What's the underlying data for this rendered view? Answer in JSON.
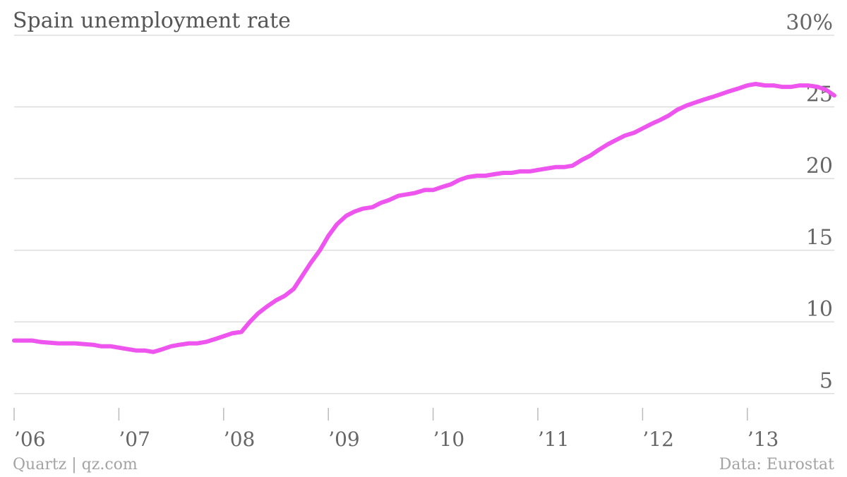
{
  "colors": {
    "line": "#ee55ee",
    "gridline": "#dddddd",
    "tick_mark": "#bbbbbb",
    "text": "#666666",
    "footer_text": "#a3a3a3"
  },
  "footer": {
    "source_left": "Quartz | qz.com",
    "source_right": "Data: Eurostat"
  },
  "chart_data": {
    "type": "line",
    "title": "Spain unemployment rate",
    "xlabel": "",
    "ylabel": "",
    "y_unit_suffix": "%",
    "ylim": [
      4.0,
      30
    ],
    "xlim": [
      2006.0,
      2013.83
    ],
    "y_ticks": [
      5,
      10,
      15,
      20,
      25,
      30
    ],
    "y_tick_labels": [
      "5",
      "10",
      "15",
      "20",
      "25",
      "30%"
    ],
    "x_ticks": [
      2006,
      2007,
      2008,
      2009,
      2010,
      2011,
      2012,
      2013
    ],
    "x_tick_labels": [
      "’06",
      "’07",
      "’08",
      "’09",
      "’10",
      "’11",
      "’12",
      "’13"
    ],
    "grid": true,
    "legend": "none",
    "series": [
      {
        "x": [
          2006.0,
          2006.17,
          2006.25,
          2006.42,
          2006.58,
          2006.75,
          2006.83,
          2006.92,
          2007.0,
          2007.08,
          2007.17,
          2007.25,
          2007.33,
          2007.42,
          2007.5,
          2007.58,
          2007.67,
          2007.75,
          2007.83,
          2007.92,
          2008.0,
          2008.08,
          2008.17,
          2008.25,
          2008.33,
          2008.42,
          2008.5,
          2008.58,
          2008.67,
          2008.75,
          2008.83,
          2008.92,
          2009.0,
          2009.08,
          2009.17,
          2009.25,
          2009.33,
          2009.42,
          2009.5,
          2009.58,
          2009.67,
          2009.75,
          2009.83,
          2009.92,
          2010.0,
          2010.08,
          2010.17,
          2010.25,
          2010.33,
          2010.42,
          2010.5,
          2010.58,
          2010.67,
          2010.75,
          2010.83,
          2010.92,
          2011.0,
          2011.08,
          2011.17,
          2011.25,
          2011.33,
          2011.42,
          2011.5,
          2011.58,
          2011.67,
          2011.75,
          2011.83,
          2011.92,
          2012.0,
          2012.08,
          2012.17,
          2012.25,
          2012.33,
          2012.42,
          2012.5,
          2012.58,
          2012.67,
          2012.75,
          2012.83,
          2012.92,
          2013.0,
          2013.08,
          2013.17,
          2013.25,
          2013.33,
          2013.42,
          2013.5,
          2013.58,
          2013.67,
          2013.75,
          2013.83
        ],
        "values": [
          8.7,
          8.7,
          8.6,
          8.5,
          8.5,
          8.4,
          8.3,
          8.3,
          8.2,
          8.1,
          8.0,
          8.0,
          7.9,
          8.1,
          8.3,
          8.4,
          8.5,
          8.5,
          8.6,
          8.8,
          9.0,
          9.2,
          9.3,
          10.0,
          10.6,
          11.1,
          11.5,
          11.8,
          12.3,
          13.2,
          14.1,
          15.0,
          16.0,
          16.8,
          17.4,
          17.7,
          17.9,
          18.0,
          18.3,
          18.5,
          18.8,
          18.9,
          19.0,
          19.2,
          19.2,
          19.4,
          19.6,
          19.9,
          20.1,
          20.2,
          20.2,
          20.3,
          20.4,
          20.4,
          20.5,
          20.5,
          20.6,
          20.7,
          20.8,
          20.8,
          20.9,
          21.3,
          21.6,
          22.0,
          22.4,
          22.7,
          23.0,
          23.2,
          23.5,
          23.8,
          24.1,
          24.4,
          24.8,
          25.1,
          25.3,
          25.5,
          25.7,
          25.9,
          26.1,
          26.3,
          26.5,
          26.6,
          26.5,
          26.5,
          26.4,
          26.4,
          26.5,
          26.5,
          26.4,
          26.2,
          25.8
        ]
      }
    ]
  }
}
